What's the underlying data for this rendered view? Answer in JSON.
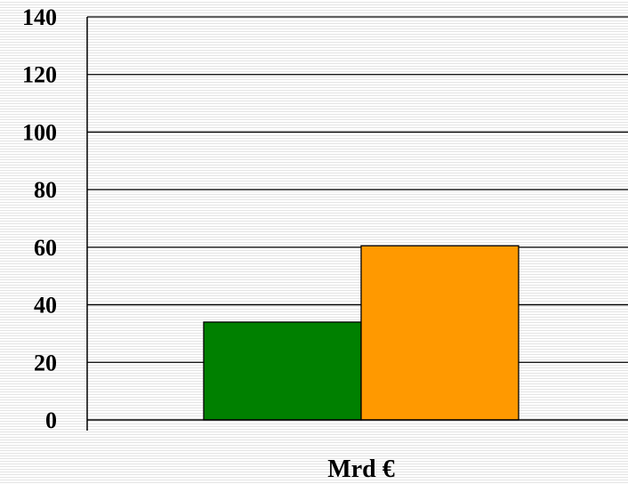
{
  "chart_data": {
    "type": "bar",
    "categories": [
      "Mrd €"
    ],
    "series": [
      {
        "values": [
          34
        ],
        "color": "#008000"
      },
      {
        "values": [
          60.5
        ],
        "color": "#ff9900"
      }
    ],
    "ylim": [
      0,
      140
    ],
    "yticks": [
      "0",
      "20",
      "40",
      "60",
      "80",
      "100",
      "120",
      "140"
    ],
    "xlabel": "Mrd €",
    "grid": true,
    "legend": "none"
  }
}
